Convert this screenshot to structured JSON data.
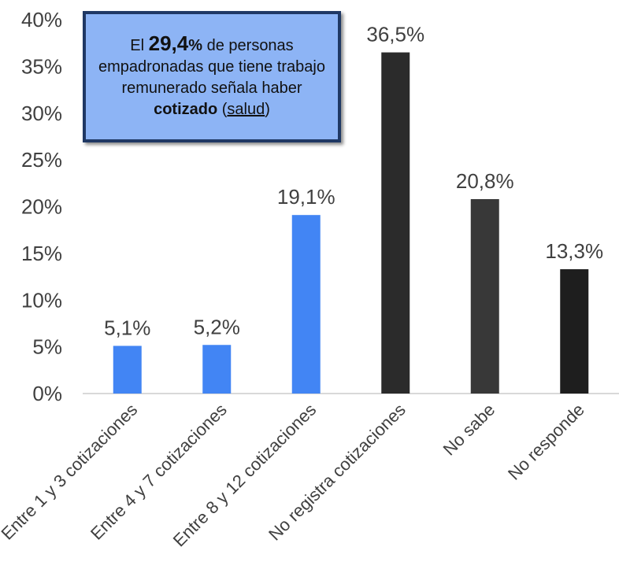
{
  "chart_data": {
    "type": "bar",
    "categories": [
      "Entre 1 y 3 cotizaciones",
      "Entre 4 y 7 cotizaciones",
      "Entre 8 y 12 cotizaciones",
      "No registra cotizaciones",
      "No sabe",
      "No responde"
    ],
    "values": [
      5.1,
      5.2,
      19.1,
      36.5,
      20.8,
      13.3
    ],
    "value_labels": [
      "5,1%",
      "5,2%",
      "19,1%",
      "36,5%",
      "20,8%",
      "13,3%"
    ],
    "colors": [
      "#4285f4",
      "#4285f4",
      "#4285f4",
      "#2b2b2b",
      "#383838",
      "#1e1e1e"
    ],
    "ylim": [
      0,
      40
    ],
    "yticks": [
      0,
      5,
      10,
      15,
      20,
      25,
      30,
      35,
      40
    ],
    "ytick_labels": [
      "0%",
      "5%",
      "10%",
      "15%",
      "20%",
      "25%",
      "30%",
      "35%",
      "40%"
    ],
    "grid": false,
    "legend": "none",
    "annotation": {
      "prefix": "El ",
      "highlight_number": "29,4",
      "highlight_unit": "%",
      "text_1": " de personas empadronadas que tiene trabajo remunerado señala haber ",
      "bold_word": "cotizado",
      "paren_open": " (",
      "underlined_word": "salud",
      "paren_close": ")",
      "bg_color": "#8db4f5",
      "border_color": "#1f3864"
    }
  }
}
